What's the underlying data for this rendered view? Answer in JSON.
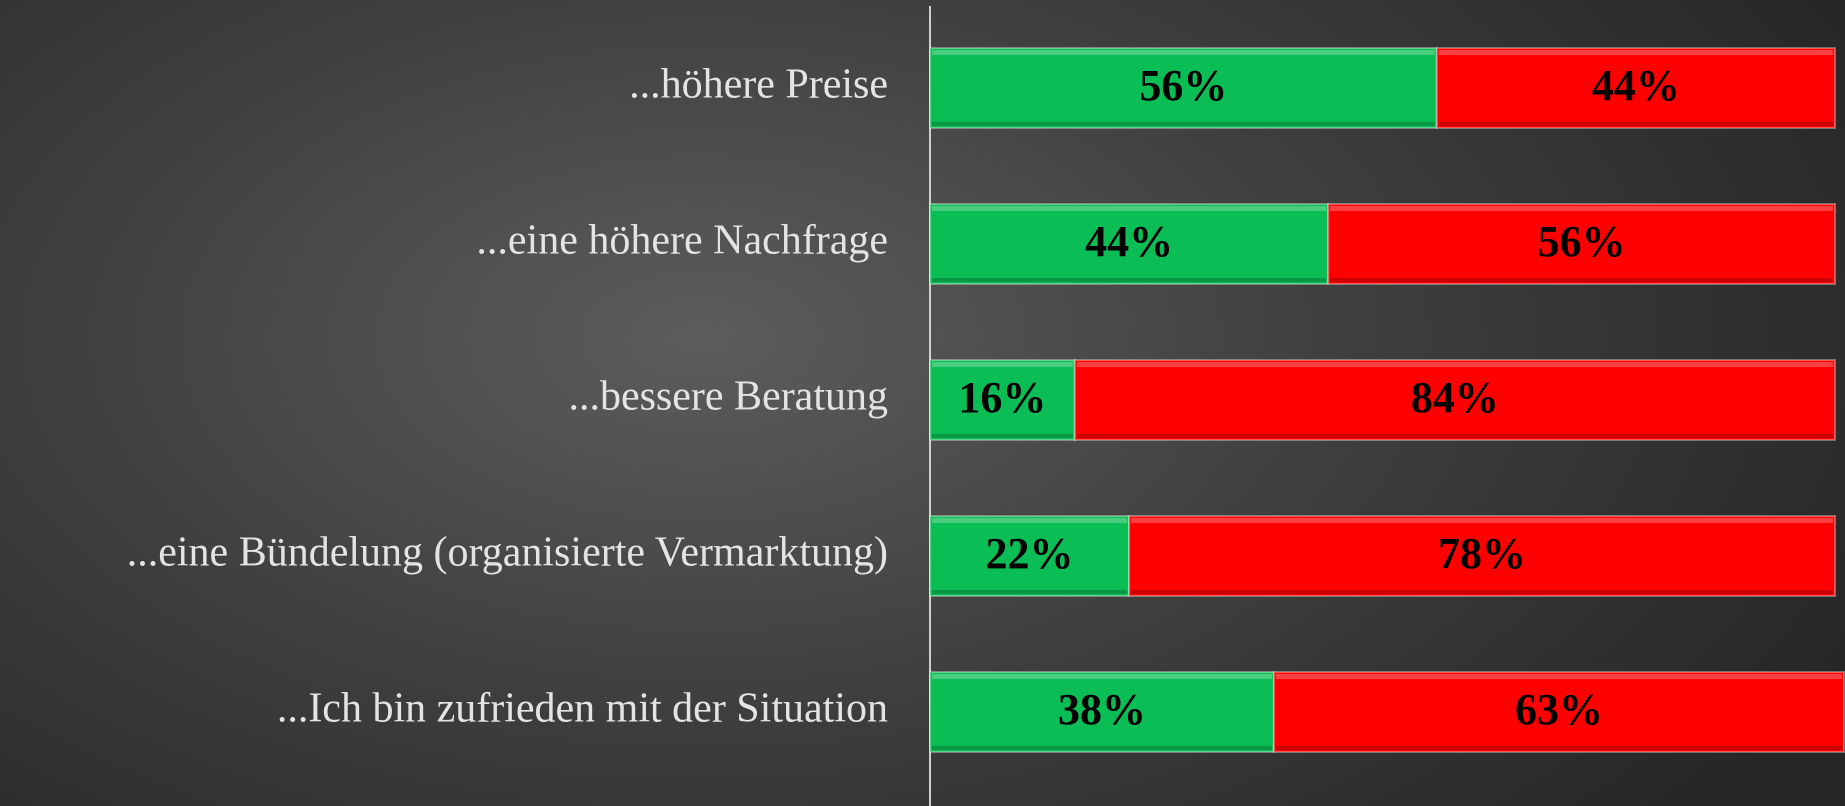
{
  "chart_data": {
    "type": "bar",
    "orientation": "horizontal",
    "stacked": true,
    "categories": [
      "...höhere Preise",
      "...eine höhere Nachfrage",
      "...bessere Beratung",
      "...eine Bündelung (organisierte Vermarktung)",
      "...Ich bin zufrieden mit der Situation"
    ],
    "series": [
      {
        "color": "#0bbd55",
        "values": [
          56,
          44,
          16,
          22,
          38
        ],
        "value_labels": [
          "56%",
          "44%",
          "16%",
          "22%",
          "38%"
        ]
      },
      {
        "color": "#ff0000",
        "values": [
          44,
          56,
          84,
          78,
          63
        ],
        "value_labels": [
          "44%",
          "56%",
          "84%",
          "78%",
          "63%"
        ]
      }
    ],
    "xlim": [
      0,
      100
    ]
  }
}
